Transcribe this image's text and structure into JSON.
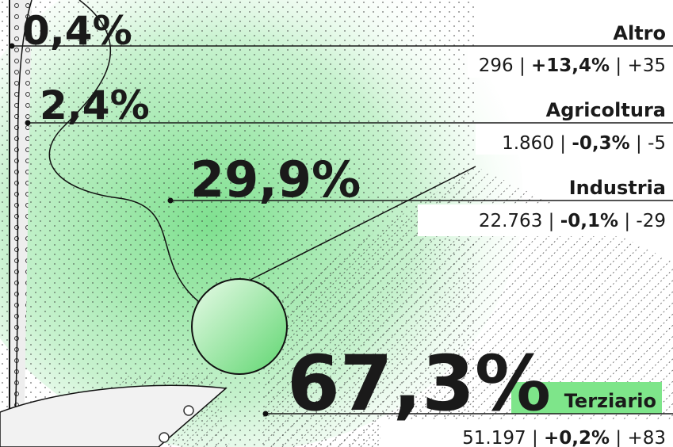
{
  "separator": "|",
  "sectors": [
    {
      "share": "0,4%",
      "name": "Altro",
      "count": "296",
      "change_pct": "+13,4%",
      "change": "+35"
    },
    {
      "share": "2,4%",
      "name": "Agricoltura",
      "count": "1.860",
      "change_pct": "-0,3%",
      "change": "-5"
    },
    {
      "share": "29,9%",
      "name": "Industria",
      "count": "22.763",
      "change_pct": "-0,1%",
      "change": "-29"
    },
    {
      "share": "67,3%",
      "name": "Terziario",
      "count": "51.197",
      "change_pct": "+0,2%",
      "change": "+83"
    }
  ]
}
